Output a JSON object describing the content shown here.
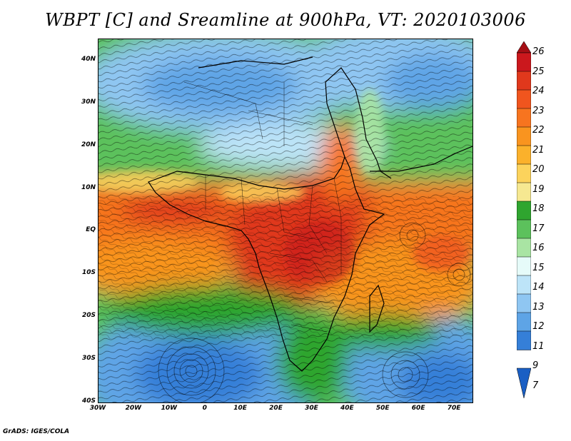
{
  "title": "WBPT [C] and Sreamline at 900hPa, VT: 2020103006",
  "credit": "GrADS: IGES/COLA",
  "map": {
    "lat_labels": [
      "40N",
      "30N",
      "20N",
      "10N",
      "EQ",
      "10S",
      "20S",
      "30S",
      "40S"
    ],
    "lon_labels": [
      "30W",
      "20W",
      "10W",
      "0",
      "10E",
      "20E",
      "30E",
      "40E",
      "50E",
      "60E",
      "70E"
    ],
    "lat_range": [
      -40,
      45
    ],
    "lon_range": [
      -30,
      75
    ]
  },
  "colorbar": {
    "labels": [
      "26",
      "25",
      "24",
      "23",
      "22",
      "21",
      "20",
      "19",
      "18",
      "17",
      "16",
      "15",
      "14",
      "13",
      "12",
      "11",
      "9",
      "7"
    ],
    "colors": [
      "#a50f15",
      "#cb181d",
      "#e0381c",
      "#f0551e",
      "#f7741f",
      "#f9941f",
      "#fbb12b",
      "#fcd35c",
      "#f6e891",
      "#2fa52f",
      "#5cc15c",
      "#a9e4a3",
      "#e6fbf9",
      "#bde4f8",
      "#8fc6f2",
      "#5ea4e6",
      "#357fd8",
      "#1a5fc4"
    ]
  }
}
